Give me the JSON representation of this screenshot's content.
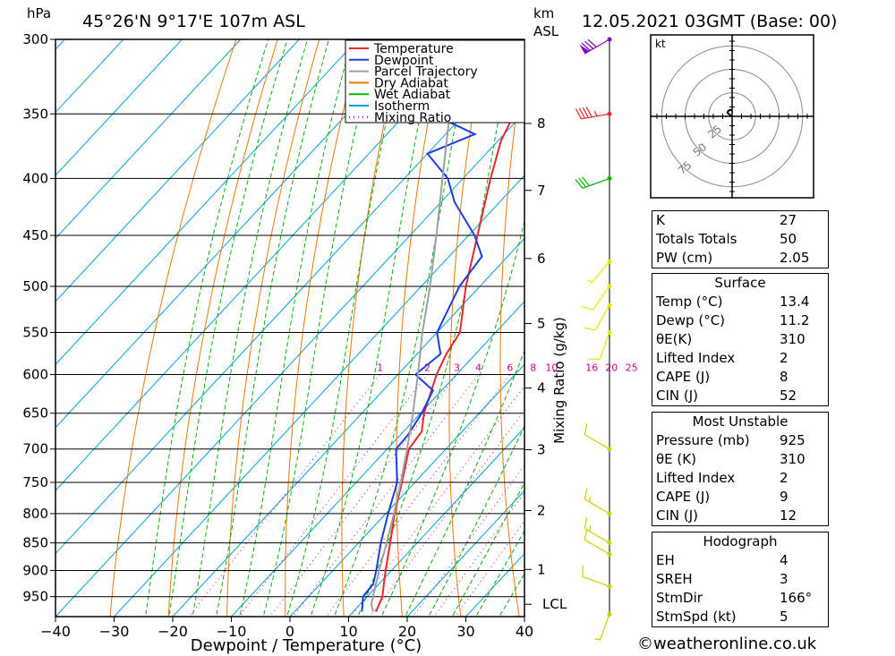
{
  "header": {
    "location": "45°26'N  9°17'E  107m  ASL",
    "datetime": "12.05.2021  03GMT  (Base: 00)",
    "pressure_unit": "hPa",
    "height_unit": "km",
    "height_unit2": "ASL"
  },
  "colors": {
    "temperature": "#e8262b",
    "dewpoint": "#1a3fe0",
    "parcel": "#a0a0a0",
    "dry_adiabat": "#f07800",
    "wet_adiabat": "#00b400",
    "isotherm": "#00a0e0",
    "mixing_ratio": "#d0008c"
  },
  "chart_data": {
    "type": "line",
    "subtype": "skew-T log-P diagram",
    "xlabel": "Dewpoint / Temperature (°C)",
    "ylabel": "hPa",
    "xlim": [
      -40,
      40
    ],
    "ylim": [
      990,
      300
    ],
    "log_scale_y": true,
    "x_ticks": [
      "−40",
      "−30",
      "−20",
      "−10",
      "0",
      "10",
      "20",
      "30",
      "40"
    ],
    "pressure_levels": [
      300,
      350,
      400,
      450,
      500,
      550,
      600,
      650,
      700,
      750,
      800,
      850,
      900,
      950
    ],
    "height_ticks": [
      {
        "km": "8",
        "p": 357
      },
      {
        "km": "7",
        "p": 410
      },
      {
        "km": "6",
        "p": 472
      },
      {
        "km": "5",
        "p": 540
      },
      {
        "km": "4",
        "p": 617
      },
      {
        "km": "3",
        "p": 701
      },
      {
        "km": "2",
        "p": 795
      },
      {
        "km": "1",
        "p": 898
      },
      {
        "km": "LCL",
        "p": 965
      }
    ],
    "mixing_ratio_label": "Mixing Ratio (g/kg)",
    "mixing_ratio_values": [
      "1",
      "2",
      "3",
      "4",
      "6",
      "8",
      "10",
      "16",
      "20",
      "25"
    ],
    "legend": [
      "Temperature",
      "Dewpoint",
      "Parcel Trajectory",
      "Dry Adiabat",
      "Wet Adiabat",
      "Isotherm",
      "Mixing Ratio"
    ],
    "legend_position": "top-right",
    "series": [
      {
        "name": "Temperature",
        "points": [
          [
            980,
            13.9
          ],
          [
            950,
            12.6
          ],
          [
            925,
            10.8
          ],
          [
            900,
            9.0
          ],
          [
            850,
            5.4
          ],
          [
            800,
            1.5
          ],
          [
            750,
            -2.2
          ],
          [
            700,
            -6.3
          ],
          [
            675,
            -6.9
          ],
          [
            650,
            -9.4
          ],
          [
            600,
            -13.4
          ],
          [
            575,
            -15.0
          ],
          [
            550,
            -16.1
          ],
          [
            500,
            -22.4
          ],
          [
            450,
            -28.5
          ],
          [
            400,
            -35.3
          ],
          [
            370,
            -39.5
          ],
          [
            350,
            -41.5
          ],
          [
            320,
            -45.6
          ],
          [
            300,
            -45.8
          ]
        ]
      },
      {
        "name": "Dewpoint",
        "points": [
          [
            980,
            11.5
          ],
          [
            950,
            9.3
          ],
          [
            925,
            9.0
          ],
          [
            900,
            7.4
          ],
          [
            850,
            3.8
          ],
          [
            800,
            0.4
          ],
          [
            750,
            -3.0
          ],
          [
            700,
            -8.5
          ],
          [
            680,
            -8.7
          ],
          [
            650,
            -9.8
          ],
          [
            620,
            -11.5
          ],
          [
            600,
            -17.0
          ],
          [
            575,
            -16.0
          ],
          [
            550,
            -20.0
          ],
          [
            500,
            -23.5
          ],
          [
            470,
            -24.4
          ],
          [
            450,
            -29.0
          ],
          [
            420,
            -37.7
          ],
          [
            400,
            -42.6
          ],
          [
            380,
            -50.0
          ],
          [
            365,
            -45.0
          ],
          [
            355,
            -52.0
          ],
          [
            350,
            -52.0
          ],
          [
            340,
            -48.0
          ],
          [
            330,
            -55.0
          ],
          [
            320,
            -68.0
          ],
          [
            310,
            -74.0
          ],
          [
            300,
            -78.0
          ]
        ]
      },
      {
        "name": "Parcel Trajectory",
        "points": [
          [
            980,
            13.4
          ],
          [
            965,
            11.9
          ],
          [
            900,
            7.9
          ],
          [
            850,
            4.8
          ],
          [
            800,
            1.4
          ],
          [
            750,
            -2.4
          ],
          [
            700,
            -6.6
          ],
          [
            650,
            -11.3
          ],
          [
            600,
            -16.6
          ],
          [
            550,
            -22.5
          ],
          [
            500,
            -28.5
          ],
          [
            450,
            -35.5
          ],
          [
            400,
            -43.5
          ],
          [
            350,
            -52.5
          ],
          [
            300,
            -62.8
          ]
        ]
      }
    ],
    "wind_barbs": [
      {
        "p": 985,
        "dir": 200,
        "spd": 5
      },
      {
        "p": 930,
        "dir": 290,
        "spd": 10
      },
      {
        "p": 870,
        "dir": 300,
        "spd": 10
      },
      {
        "p": 850,
        "dir": 300,
        "spd": 15
      },
      {
        "p": 800,
        "dir": 300,
        "spd": 15
      },
      {
        "p": 700,
        "dir": 300,
        "spd": 10
      },
      {
        "p": 550,
        "dir": 200,
        "spd": 10
      },
      {
        "p": 520,
        "dir": 210,
        "spd": 10
      },
      {
        "p": 500,
        "dir": 215,
        "spd": 10
      },
      {
        "p": 475,
        "dir": 220,
        "spd": 5
      },
      {
        "p": 400,
        "dir": 250,
        "spd": 30
      },
      {
        "p": 350,
        "dir": 260,
        "spd": 45
      },
      {
        "p": 300,
        "dir": 240,
        "spd": 80
      }
    ],
    "hodograph": {
      "unit": "kt",
      "ring_labels": [
        "25",
        "50",
        "75"
      ],
      "points": [
        [
          0,
          0
        ],
        [
          -3,
          2
        ],
        [
          -5,
          4
        ],
        [
          -4,
          6
        ],
        [
          -2,
          7
        ],
        [
          0,
          6
        ]
      ]
    }
  },
  "indices": {
    "general": [
      {
        "label": "K",
        "value": "27"
      },
      {
        "label": "Totals Totals",
        "value": "50"
      },
      {
        "label": "PW (cm)",
        "value": "2.05"
      }
    ],
    "surface": {
      "title": "Surface",
      "rows": [
        {
          "label": "Temp (°C)",
          "value": "13.4"
        },
        {
          "label": "Dewp (°C)",
          "value": "11.2"
        },
        {
          "label": "θE(K)",
          "value": "310"
        },
        {
          "label": "Lifted Index",
          "value": "2"
        },
        {
          "label": "CAPE (J)",
          "value": "8"
        },
        {
          "label": "CIN (J)",
          "value": "52"
        }
      ]
    },
    "most_unstable": {
      "title": "Most Unstable",
      "rows": [
        {
          "label": "Pressure (mb)",
          "value": "925"
        },
        {
          "label": "θE (K)",
          "value": "310"
        },
        {
          "label": "Lifted Index",
          "value": "2"
        },
        {
          "label": "CAPE (J)",
          "value": "9"
        },
        {
          "label": "CIN (J)",
          "value": "12"
        }
      ]
    },
    "hodograph": {
      "title": "Hodograph",
      "rows": [
        {
          "label": "EH",
          "value": "4"
        },
        {
          "label": "SREH",
          "value": "3"
        },
        {
          "label": "StmDir",
          "value": "166°"
        },
        {
          "label": "StmSpd (kt)",
          "value": "5"
        }
      ]
    }
  },
  "footer": {
    "credit": "©weatheronline.co.uk"
  }
}
